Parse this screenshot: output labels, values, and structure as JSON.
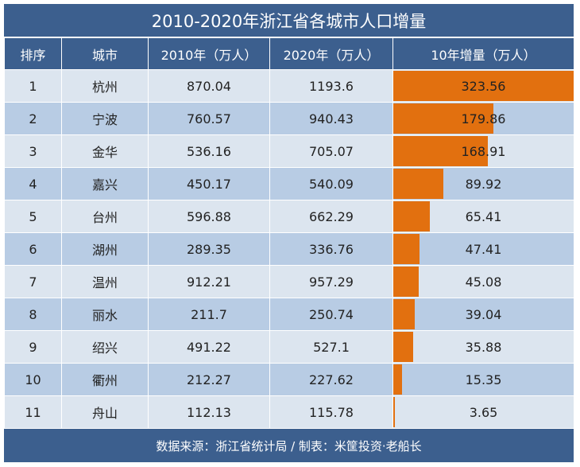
{
  "title": "2010-2020年浙江省各城市人口增量",
  "footer": "数据来源：浙江省统计局 / 制表：米筐投资·老船长",
  "chart_data": {
    "type": "table",
    "title": "2010-2020年浙江省各城市人口增量",
    "columns": [
      "排序",
      "城市",
      "2010年（万人）",
      "2020年（万人）",
      "10年增量（万人）"
    ],
    "bar_color": "#e2700f",
    "rows": [
      [
        "1",
        "杭州",
        "870.04",
        "1193.6",
        "323.56"
      ],
      [
        "2",
        "宁波",
        "760.57",
        "940.43",
        "179.86"
      ],
      [
        "3",
        "金华",
        "536.16",
        "705.07",
        "168.91"
      ],
      [
        "4",
        "嘉兴",
        "450.17",
        "540.09",
        "89.92"
      ],
      [
        "5",
        "台州",
        "596.88",
        "662.29",
        "65.41"
      ],
      [
        "6",
        "湖州",
        "289.35",
        "336.76",
        "47.41"
      ],
      [
        "7",
        "温州",
        "912.21",
        "957.29",
        "45.08"
      ],
      [
        "8",
        "丽水",
        "211.7",
        "250.74",
        "39.04"
      ],
      [
        "9",
        "绍兴",
        "491.22",
        "527.1",
        "35.88"
      ],
      [
        "10",
        "衢州",
        "212.27",
        "227.62",
        "15.35"
      ],
      [
        "11",
        "舟山",
        "112.13",
        "115.78",
        "3.65"
      ]
    ]
  }
}
